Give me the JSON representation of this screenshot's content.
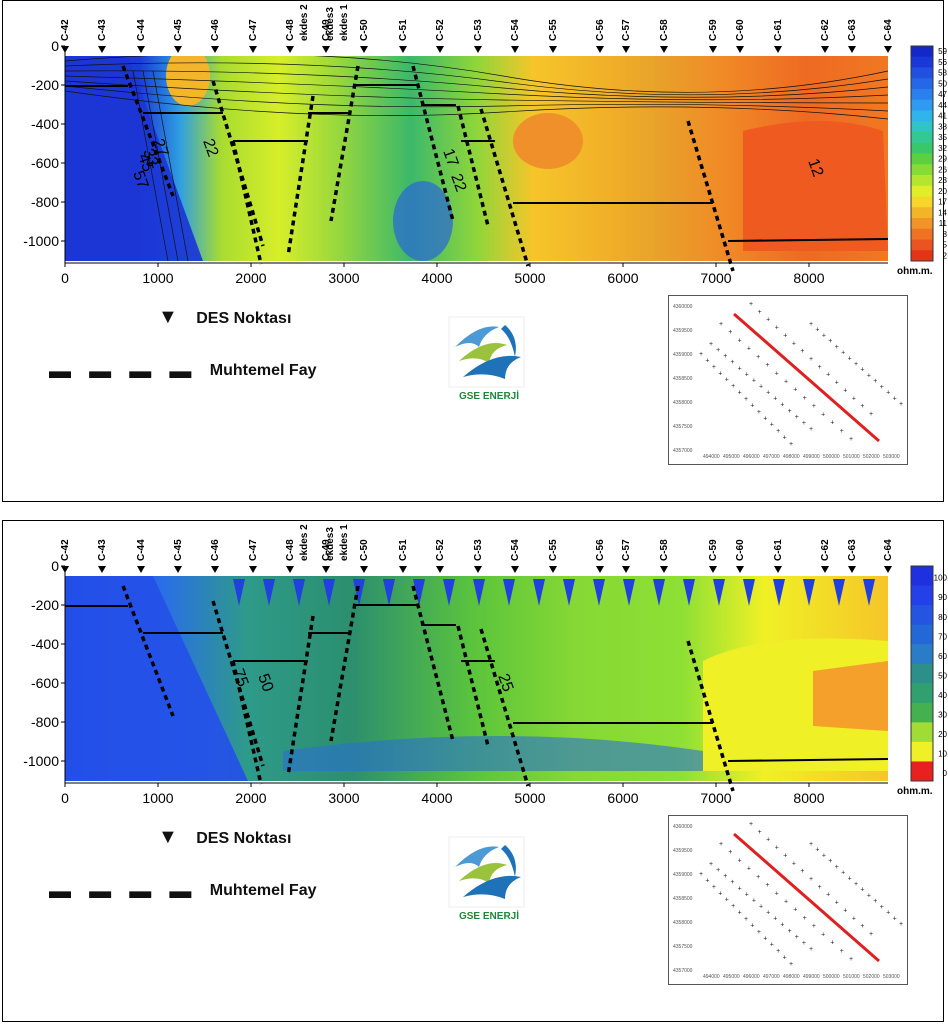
{
  "panels": [
    {
      "id": "top",
      "colorbar_values": [
        "59",
        "56",
        "53",
        "50",
        "47",
        "44",
        "41",
        "38",
        "35",
        "32",
        "29",
        "26",
        "23",
        "20",
        "17",
        "14",
        "11",
        "8",
        "5",
        "2"
      ],
      "unit": "ohm.m.",
      "contour_labels": [
        "27",
        "33",
        "45",
        "57",
        "22",
        "22",
        "17",
        "12"
      ]
    },
    {
      "id": "bottom",
      "colorbar_values": [
        "100",
        "90",
        "80",
        "70",
        "60",
        "50",
        "40",
        "30",
        "20",
        "10",
        "0"
      ],
      "unit": "ohm.m.",
      "contour_labels": [
        "75",
        "50",
        "25"
      ]
    }
  ],
  "stations": [
    "C-42",
    "C-43",
    "C-44",
    "C-45",
    "C-46",
    "C-47",
    "C-48",
    "ekdes 2",
    "C-49",
    "ekdes3",
    "ekdes 1",
    "C-50",
    "C-51",
    "C-52",
    "C-53",
    "C-54",
    "C-55",
    "C-56",
    "C-57",
    "C-58",
    "C-59",
    "C-60",
    "C-61",
    "C-62",
    "C-63",
    "C-64"
  ],
  "x_ticks": [
    "0",
    "1000",
    "2000",
    "3000",
    "4000",
    "5000",
    "6000",
    "7000",
    "8000"
  ],
  "y_ticks": [
    "0",
    "-200",
    "-400",
    "-600",
    "-800",
    "-1000"
  ],
  "legend": {
    "station_label": "DES Noktası",
    "fault_label": "Muhtemel Fay"
  },
  "logo": {
    "text": "GSE ENERJİ"
  },
  "minimap": {
    "y_labels": [
      "4360000",
      "4359500",
      "4359000",
      "4358500",
      "4358000",
      "4357500",
      "4357000"
    ],
    "x_labels": [
      "494000",
      "495000",
      "496000",
      "497000",
      "498000",
      "499000",
      "500000",
      "501000",
      "502000",
      "503000"
    ]
  },
  "colors": {
    "fault": "#000000",
    "profile_line": "#e02020"
  }
}
